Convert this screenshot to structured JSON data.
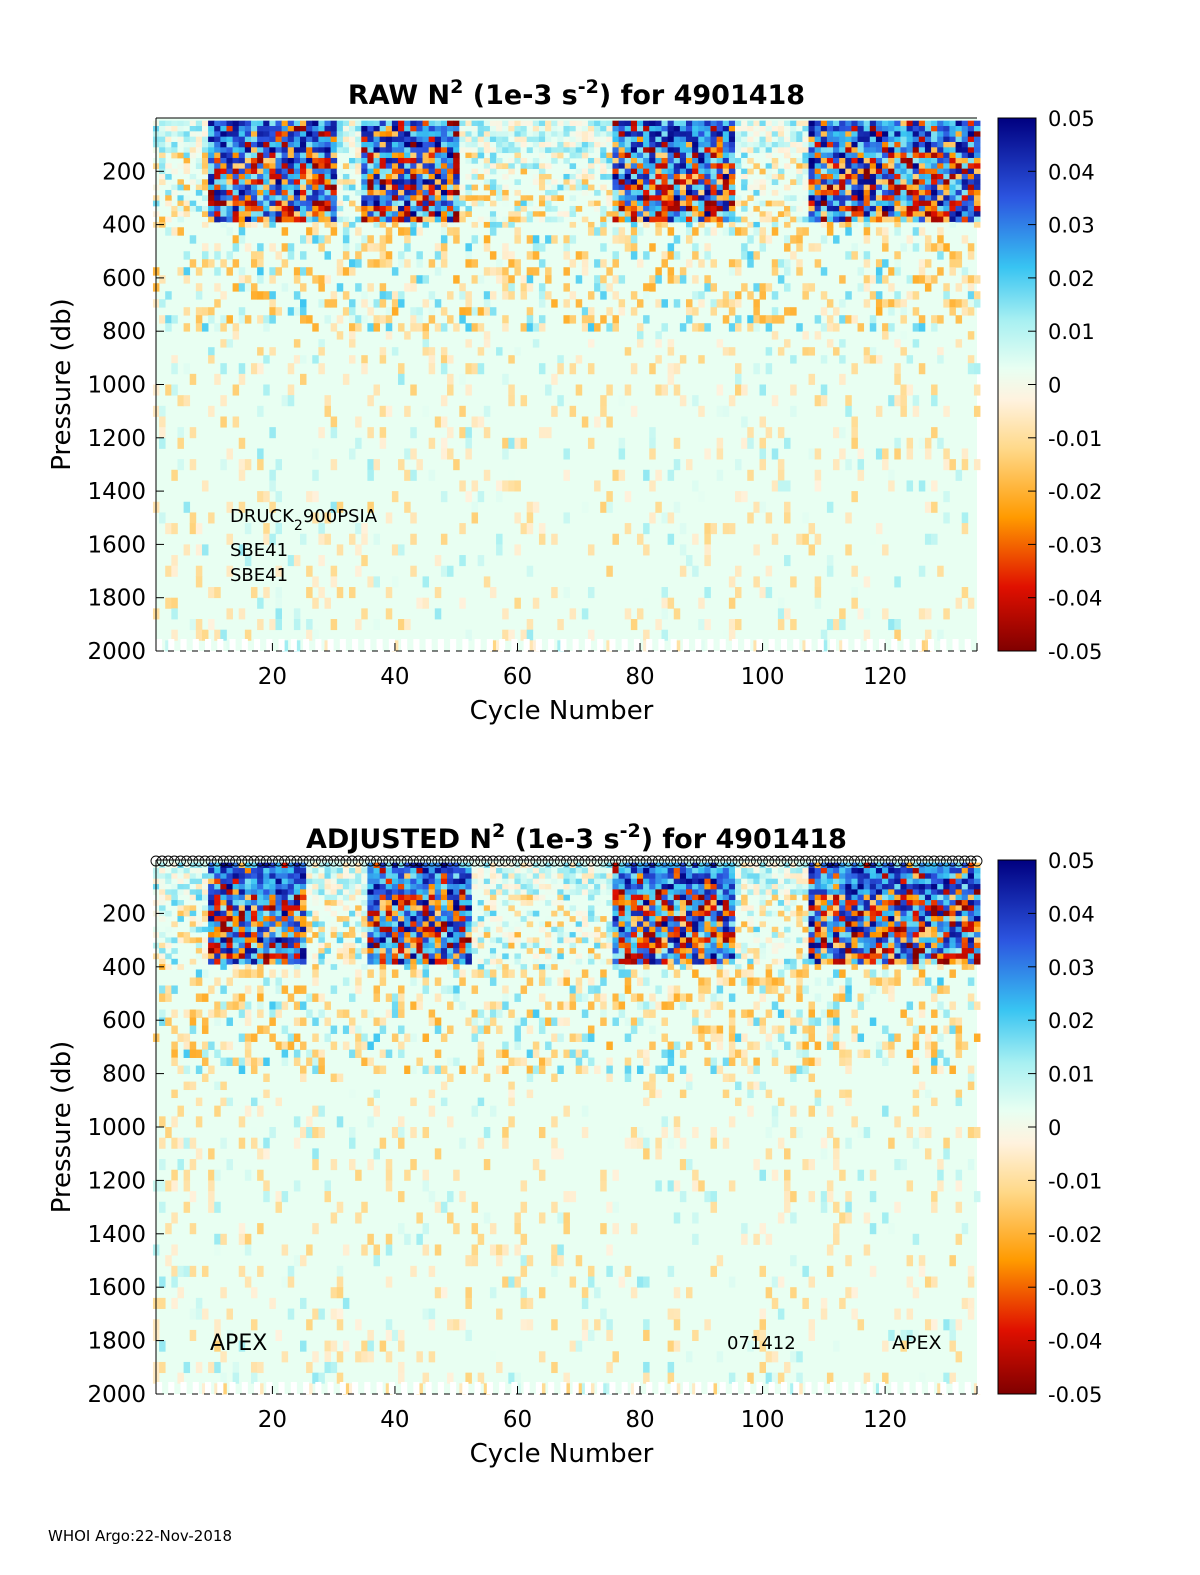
{
  "footer": "WHOI Argo:22-Nov-2018",
  "chart_data": [
    {
      "type": "heatmap",
      "title": {
        "prefix": "RAW N",
        "sup1": "2",
        "mid": " (1e-3 s",
        "sup2": "-2",
        "suffix": ") for 4901418"
      },
      "xlabel": "Cycle Number",
      "ylabel": "Pressure (db)",
      "xlim": [
        1,
        135
      ],
      "ylim": [
        0,
        2000
      ],
      "xticks": [
        20,
        40,
        60,
        80,
        100,
        120
      ],
      "yticks": [
        200,
        400,
        600,
        800,
        1000,
        1200,
        1400,
        1600,
        1800,
        2000
      ],
      "colorbar": {
        "min": -0.05,
        "max": 0.05,
        "ticks": [
          "0.05",
          "0.04",
          "0.03",
          "0.02",
          "0.01",
          "0",
          "-0.01",
          "-0.02",
          "-0.03",
          "-0.04",
          "-0.05"
        ]
      },
      "annotations": [
        {
          "name": "pressure-sensor-label",
          "text": "DRUCK",
          "sub": "2",
          "rest": "900PSIA"
        },
        {
          "name": "sensor-label-1",
          "text": "SBE41"
        },
        {
          "name": "sensor-label-2",
          "text": "SBE41"
        }
      ],
      "strong_cycle_ranges": [
        [
          10,
          30
        ],
        [
          35,
          50
        ],
        [
          76,
          95
        ],
        [
          108,
          135
        ]
      ],
      "surface_cycle_markers": false
    },
    {
      "type": "heatmap",
      "title": {
        "prefix": "ADJUSTED N",
        "sup1": "2",
        "mid": " (1e-3 s",
        "sup2": "-2",
        "suffix": ") for 4901418"
      },
      "xlabel": "Cycle Number",
      "ylabel": "Pressure (db)",
      "xlim": [
        1,
        135
      ],
      "ylim": [
        0,
        2000
      ],
      "xticks": [
        20,
        40,
        60,
        80,
        100,
        120
      ],
      "yticks": [
        200,
        400,
        600,
        800,
        1000,
        1200,
        1400,
        1600,
        1800,
        2000
      ],
      "colorbar": {
        "min": -0.05,
        "max": 0.05,
        "ticks": [
          "0.05",
          "0.04",
          "0.03",
          "0.02",
          "0.01",
          "0",
          "-0.01",
          "-0.02",
          "-0.03",
          "-0.04",
          "-0.05"
        ]
      },
      "annotations": [
        {
          "name": "platform-label-left",
          "text": "APEX"
        },
        {
          "name": "firmware-label",
          "text": "071412"
        },
        {
          "name": "platform-label-right",
          "text": "APEX"
        }
      ],
      "strong_cycle_ranges": [
        [
          10,
          25
        ],
        [
          36,
          52
        ],
        [
          76,
          95
        ],
        [
          108,
          135
        ]
      ],
      "surface_cycle_markers": true
    }
  ]
}
